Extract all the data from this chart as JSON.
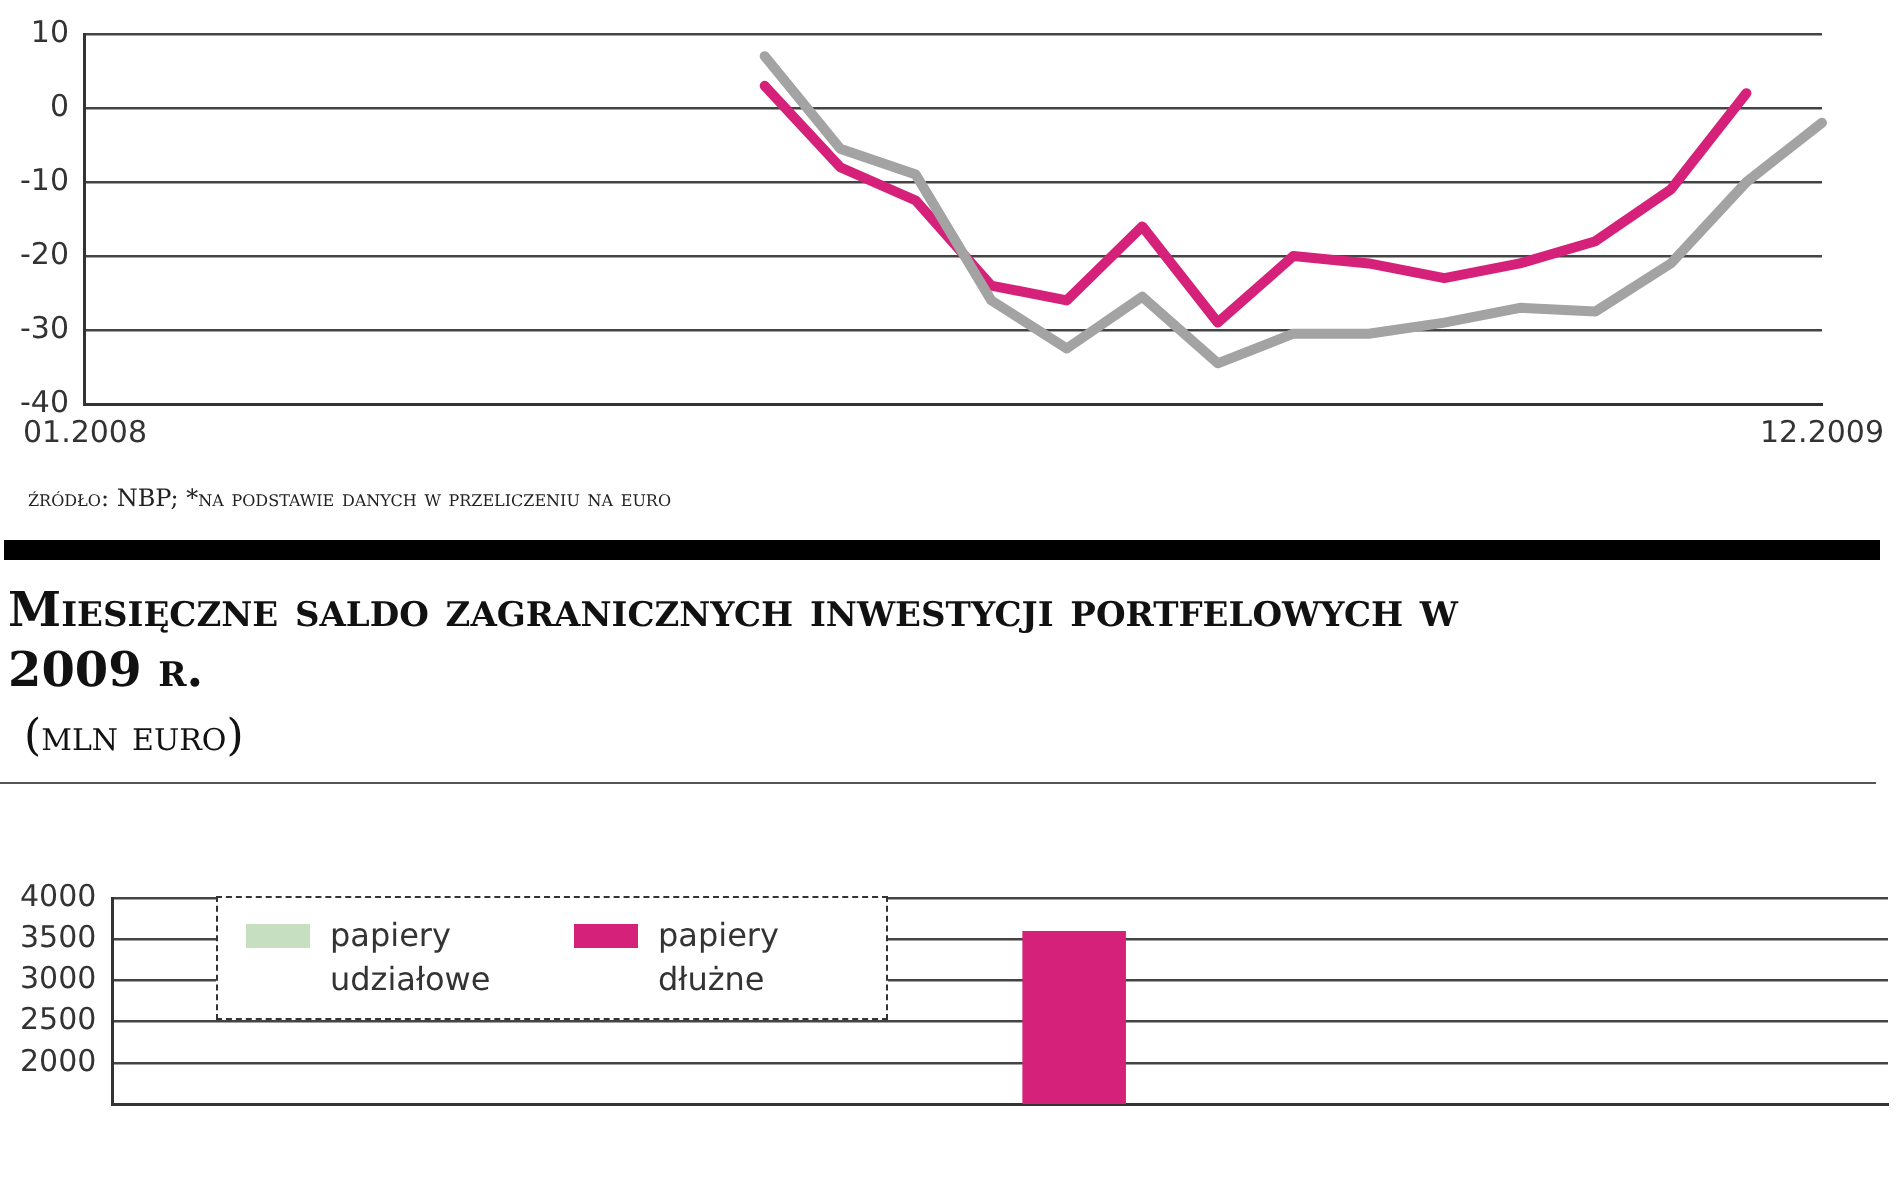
{
  "chart_data": [
    {
      "type": "line",
      "categories": [
        "01.2008",
        null,
        null,
        null,
        null,
        null,
        null,
        null,
        null,
        null,
        null,
        null,
        null,
        null,
        null,
        null,
        null,
        null,
        null,
        null,
        null,
        null,
        null,
        "12.2009"
      ],
      "series": [
        {
          "color": "#a3a3a3",
          "values": [
            null,
            null,
            null,
            null,
            null,
            null,
            null,
            null,
            null,
            7,
            -5.5,
            -9,
            -26,
            -32.5,
            -25.5,
            -34.5,
            -30.5,
            -30.5,
            -29,
            -27,
            -27.5,
            -21,
            -10,
            -2
          ]
        },
        {
          "color": "#d6217a",
          "values": [
            null,
            null,
            null,
            null,
            null,
            null,
            null,
            null,
            null,
            3,
            -8,
            -12.5,
            -24,
            -26,
            -16,
            -29,
            -20,
            -21,
            -23,
            -21,
            -18,
            -11,
            2,
            null
          ]
        }
      ],
      "ylim": [
        -40,
        10
      ],
      "yticks": [
        -40,
        -30,
        -20,
        -10,
        0,
        10
      ],
      "grid": "y",
      "annotations": [
        "źródło: NBP; *na podstawie danych w przeliczeniu na euro"
      ]
    },
    {
      "type": "bar",
      "title": "Miesięczne saldo zagranicznych inwestycji portfelowych w 2009 r.",
      "subtitle": "(mln euro)",
      "categories": [
        null,
        null,
        null,
        null,
        null,
        null,
        null,
        null,
        null,
        null,
        null,
        null
      ],
      "series": [
        {
          "name": "papiery udziałowe",
          "color": "#c5dfc0",
          "values": [
            null,
            null,
            null,
            null,
            null,
            null,
            null,
            null,
            null,
            null,
            null,
            null
          ]
        },
        {
          "name": "papiery dłużne",
          "color": "#d6217a",
          "values": [
            null,
            null,
            null,
            null,
            null,
            null,
            3600,
            null,
            null,
            null,
            null,
            null
          ]
        }
      ],
      "ylim": [
        1500,
        4000
      ],
      "yticks": [
        2000,
        2500,
        3000,
        3500,
        4000
      ],
      "grid": "y",
      "legend": "top left"
    }
  ]
}
